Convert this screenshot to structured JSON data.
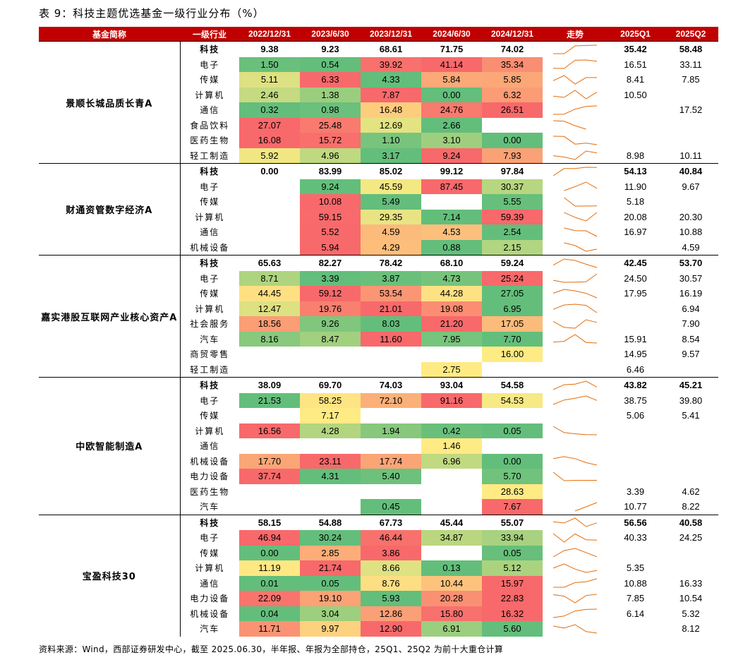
{
  "title": "表 9：科技主题优选基金一级行业分布（%）",
  "header": [
    "基金简称",
    "一级行业",
    "2022/12/31",
    "2023/6/30",
    "2023/12/31",
    "2024/6/30",
    "2024/12/31",
    "走势",
    "2025Q1",
    "2025Q2"
  ],
  "footer": "资料来源：Wind，西部证券研发中心，截至 2025.06.30，半年报、年报为全部持仓，25Q1、25Q2 为前十大重仓计算",
  "colors": {
    "header_bg": "#c00000",
    "high": "#f8696b",
    "mid": "#ffeb84",
    "low": "#63be7b",
    "sparkline": "#e46c0a"
  },
  "funds": [
    {
      "name": "景顺长城品质长青A",
      "rows": [
        {
          "industry": "科技",
          "tech": true,
          "values": [
            "9.38",
            "9.23",
            "68.61",
            "71.75",
            "74.02"
          ],
          "q1": "35.42",
          "q2": "58.48"
        },
        {
          "industry": "电子",
          "values": [
            "1.50",
            "0.54",
            "39.92",
            "41.14",
            "35.34"
          ],
          "q1": "16.51",
          "q2": "33.11"
        },
        {
          "industry": "传媒",
          "values": [
            "5.11",
            "6.33",
            "4.33",
            "5.84",
            "5.85"
          ],
          "q1": "8.41",
          "q2": "7.85"
        },
        {
          "industry": "计算机",
          "values": [
            "2.46",
            "1.38",
            "7.87",
            "0.00",
            "6.32"
          ],
          "q1": "10.50",
          "q2": ""
        },
        {
          "industry": "通信",
          "values": [
            "0.32",
            "0.98",
            "16.48",
            "24.76",
            "26.51"
          ],
          "q1": "",
          "q2": "17.52"
        },
        {
          "industry": "食品饮料",
          "values": [
            "27.07",
            "25.48",
            "12.69",
            "2.66",
            ""
          ],
          "q1": "",
          "q2": ""
        },
        {
          "industry": "医药生物",
          "values": [
            "16.08",
            "15.72",
            "1.10",
            "3.10",
            "0.00"
          ],
          "q1": "",
          "q2": ""
        },
        {
          "industry": "轻工制造",
          "values": [
            "5.92",
            "4.96",
            "3.17",
            "9.24",
            "7.93"
          ],
          "q1": "8.98",
          "q2": "10.11"
        }
      ]
    },
    {
      "name": "财通资管数字经济A",
      "rows": [
        {
          "industry": "科技",
          "tech": true,
          "values": [
            "0.00",
            "83.99",
            "85.02",
            "99.12",
            "97.84"
          ],
          "q1": "54.13",
          "q2": "40.84"
        },
        {
          "industry": "电子",
          "values": [
            "",
            "9.24",
            "45.59",
            "87.45",
            "30.37"
          ],
          "q1": "11.90",
          "q2": "9.67"
        },
        {
          "industry": "传媒",
          "values": [
            "",
            "10.08",
            "5.49",
            "",
            "5.55"
          ],
          "q1": "5.18",
          "q2": ""
        },
        {
          "industry": "计算机",
          "values": [
            "",
            "59.15",
            "29.35",
            "7.14",
            "59.39"
          ],
          "q1": "20.08",
          "q2": "20.30"
        },
        {
          "industry": "通信",
          "values": [
            "",
            "5.52",
            "4.59",
            "4.53",
            "2.54"
          ],
          "q1": "16.97",
          "q2": "10.88"
        },
        {
          "industry": "机械设备",
          "values": [
            "",
            "5.94",
            "4.29",
            "0.88",
            "2.15"
          ],
          "q1": "",
          "q2": "4.59"
        }
      ]
    },
    {
      "name": "嘉实港股互联网产业核心资产A",
      "rows": [
        {
          "industry": "科技",
          "tech": true,
          "values": [
            "65.63",
            "82.27",
            "78.42",
            "68.10",
            "59.24"
          ],
          "q1": "42.45",
          "q2": "53.70"
        },
        {
          "industry": "电子",
          "values": [
            "8.71",
            "3.39",
            "3.87",
            "4.73",
            "25.24"
          ],
          "q1": "24.50",
          "q2": "30.57"
        },
        {
          "industry": "传媒",
          "values": [
            "44.45",
            "59.12",
            "53.54",
            "44.28",
            "27.05"
          ],
          "q1": "17.95",
          "q2": "16.19"
        },
        {
          "industry": "计算机",
          "values": [
            "12.47",
            "19.76",
            "21.01",
            "19.08",
            "6.95"
          ],
          "q1": "",
          "q2": "6.94"
        },
        {
          "industry": "社会服务",
          "values": [
            "18.56",
            "9.26",
            "8.03",
            "21.20",
            "17.05"
          ],
          "q1": "",
          "q2": "7.90"
        },
        {
          "industry": "汽车",
          "values": [
            "8.16",
            "8.47",
            "11.60",
            "7.95",
            "7.70"
          ],
          "q1": "15.91",
          "q2": "8.54"
        },
        {
          "industry": "商贸零售",
          "values": [
            "",
            "",
            "",
            "",
            "16.00"
          ],
          "q1": "14.95",
          "q2": "9.57"
        },
        {
          "industry": "轻工制造",
          "values": [
            "",
            "",
            "",
            "2.75",
            ""
          ],
          "q1": "6.46",
          "q2": ""
        }
      ]
    },
    {
      "name": "中欧智能制造A",
      "rows": [
        {
          "industry": "科技",
          "tech": true,
          "values": [
            "38.09",
            "69.70",
            "74.03",
            "93.04",
            "54.58"
          ],
          "q1": "43.82",
          "q2": "45.21"
        },
        {
          "industry": "电子",
          "values": [
            "21.53",
            "58.25",
            "72.10",
            "91.16",
            "54.53"
          ],
          "q1": "38.75",
          "q2": "39.80"
        },
        {
          "industry": "传媒",
          "values": [
            "",
            "7.17",
            "",
            "",
            ""
          ],
          "q1": "5.06",
          "q2": "5.41"
        },
        {
          "industry": "计算机",
          "values": [
            "16.56",
            "4.28",
            "1.94",
            "0.42",
            "0.05"
          ],
          "q1": "",
          "q2": ""
        },
        {
          "industry": "通信",
          "values": [
            "",
            "",
            "",
            "1.46",
            ""
          ],
          "q1": "",
          "q2": ""
        },
        {
          "industry": "机械设备",
          "values": [
            "17.70",
            "23.11",
            "17.74",
            "6.96",
            "0.00"
          ],
          "q1": "",
          "q2": ""
        },
        {
          "industry": "电力设备",
          "values": [
            "37.74",
            "4.31",
            "5.40",
            "",
            "5.70"
          ],
          "q1": "",
          "q2": ""
        },
        {
          "industry": "医药生物",
          "values": [
            "",
            "",
            "",
            "",
            "28.63"
          ],
          "q1": "3.39",
          "q2": "4.62"
        },
        {
          "industry": "汽车",
          "values": [
            "",
            "",
            "0.45",
            "",
            "7.67"
          ],
          "q1": "10.77",
          "q2": "8.22"
        }
      ]
    },
    {
      "name": "宝盈科技30",
      "rows": [
        {
          "industry": "科技",
          "tech": true,
          "values": [
            "58.15",
            "54.88",
            "67.73",
            "45.44",
            "55.07"
          ],
          "q1": "56.56",
          "q2": "40.58"
        },
        {
          "industry": "电子",
          "values": [
            "46.94",
            "30.24",
            "46.44",
            "34.87",
            "33.94"
          ],
          "q1": "40.33",
          "q2": "24.25"
        },
        {
          "industry": "传媒",
          "values": [
            "0.00",
            "2.85",
            "3.86",
            "",
            "0.05"
          ],
          "q1": "",
          "q2": ""
        },
        {
          "industry": "计算机",
          "values": [
            "11.19",
            "21.74",
            "8.66",
            "0.13",
            "5.12"
          ],
          "q1": "5.35",
          "q2": ""
        },
        {
          "industry": "通信",
          "values": [
            "0.01",
            "0.05",
            "8.76",
            "10.44",
            "15.97"
          ],
          "q1": "10.88",
          "q2": "16.33"
        },
        {
          "industry": "电力设备",
          "values": [
            "22.09",
            "19.10",
            "5.93",
            "20.28",
            "22.83"
          ],
          "q1": "7.85",
          "q2": "10.54"
        },
        {
          "industry": "机械设备",
          "values": [
            "0.04",
            "3.04",
            "12.86",
            "15.80",
            "16.32"
          ],
          "q1": "6.14",
          "q2": "5.32"
        },
        {
          "industry": "汽车",
          "values": [
            "11.71",
            "9.97",
            "12.90",
            "6.91",
            "5.60"
          ],
          "q1": "",
          "q2": "8.12"
        }
      ]
    }
  ]
}
